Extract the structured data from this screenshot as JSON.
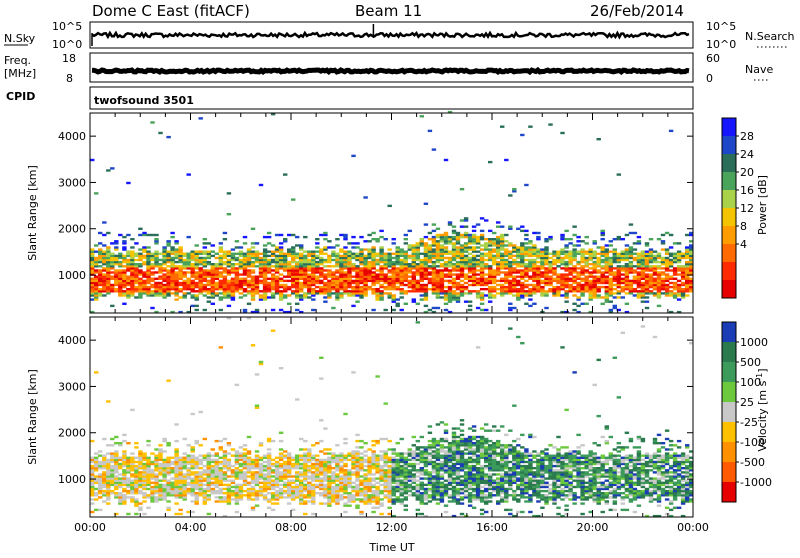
{
  "header": {
    "station": "Dome C East (fitACF)",
    "beam": "Beam 11",
    "date": "26/Feb/2014"
  },
  "top_panels": {
    "nsky_label": "N.Sky",
    "nsky_ticks": [
      "10^5",
      "10^0"
    ],
    "nsearch_label": "N.Search",
    "nsearch_ticks": [
      "10^5",
      "10^0"
    ],
    "freq_label": "Freq.",
    "freq_unit": "[MHz]",
    "freq_ticks": [
      "18",
      "8"
    ],
    "nave_label": "Nave",
    "nave_ticks": [
      "60",
      "0"
    ],
    "cpid_label": "CPID",
    "cpid_value": "twofsound 3501"
  },
  "chart_data": [
    {
      "type": "heatmap",
      "name": "power-panel",
      "ylabel": "Slant Range [km]",
      "ylim": [
        180,
        4500
      ],
      "yticks": [
        "4000",
        "3000",
        "2000",
        "1000"
      ],
      "xlim_hours": [
        0,
        24
      ],
      "colorbar": {
        "label": "Power [dB]",
        "ticks": [
          "28",
          "24",
          "20",
          "16",
          "12",
          "8",
          "4"
        ],
        "colors": [
          "#1515ff",
          "#1e46c8",
          "#2a6e5a",
          "#4aa35a",
          "#a9d24a",
          "#f4c400",
          "#ff9c00",
          "#ff6a00",
          "#ff2a00",
          "#e60000"
        ]
      }
    },
    {
      "type": "heatmap",
      "name": "velocity-panel",
      "ylabel": "Slant Range [km]",
      "ylim": [
        180,
        4500
      ],
      "yticks": [
        "4000",
        "3000",
        "2000",
        "1000"
      ],
      "xlim_hours": [
        0,
        24
      ],
      "xticks": [
        "00:00",
        "04:00",
        "08:00",
        "12:00",
        "16:00",
        "20:00",
        "00:00"
      ],
      "xlabel": "Time UT",
      "colorbar": {
        "label": "Velocity [m s-1]",
        "ticks": [
          "1000",
          "500",
          "100",
          "25",
          "-25",
          "-100",
          "-500",
          "-1000"
        ],
        "colors": [
          "#1a3cb4",
          "#2a7a4e",
          "#3c9a5a",
          "#6cc83c",
          "#c8c8c8",
          "#ffc000",
          "#ff9000",
          "#ff5a00",
          "#e60000"
        ]
      }
    }
  ]
}
